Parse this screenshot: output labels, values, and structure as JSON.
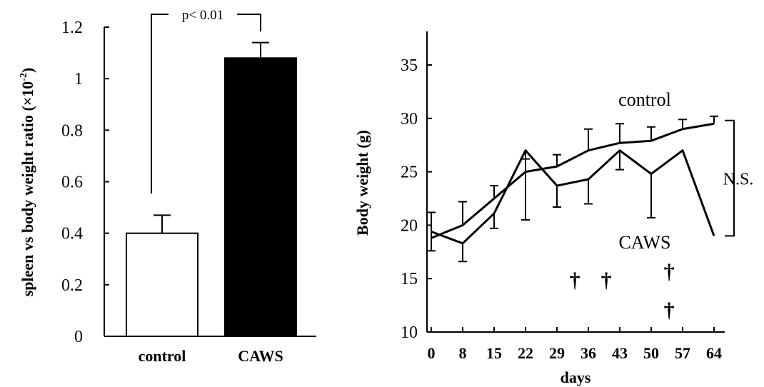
{
  "chart_data": [
    {
      "type": "bar",
      "ylabel": "spleen vs body weight ratio (×10",
      "ylabel_sup": "-2",
      "ylabel_tail": ")",
      "ylim": [
        0,
        1.2
      ],
      "yticks": [
        0,
        0.2,
        0.4,
        0.6,
        0.8,
        1,
        1.2
      ],
      "ytick_labels": [
        "0",
        "0.2",
        "0.4",
        "0.6",
        "0.8",
        "1",
        "1.2"
      ],
      "categories": [
        "control",
        "CAWS"
      ],
      "values": [
        0.4,
        1.08
      ],
      "errors": [
        0.07,
        0.06
      ],
      "bar_colors": [
        "#ffffff",
        "#000000"
      ],
      "annotation": "p< 0.01",
      "grid": false
    },
    {
      "type": "line",
      "xlabel": "days",
      "ylabel": "Body weight (g)",
      "ylim": [
        10,
        38
      ],
      "yticks": [
        10,
        15,
        20,
        25,
        30,
        35
      ],
      "ytick_labels": [
        "10",
        "15",
        "20",
        "25",
        "30",
        "35"
      ],
      "x": [
        1,
        8,
        15,
        22,
        29,
        36,
        43,
        50,
        57,
        64
      ],
      "xtick_labels": [
        "0",
        "8",
        "15",
        "22",
        "29",
        "36",
        "43",
        "50",
        "57",
        "64"
      ],
      "series": [
        {
          "name": "control",
          "values": [
            18.8,
            20.0,
            22.5,
            25.0,
            25.5,
            27.0,
            27.7,
            27.9,
            29.0,
            29.5
          ],
          "errors": [
            2.4,
            2.2,
            1.2,
            1.2,
            1.1,
            2.0,
            1.8,
            1.3,
            0.9,
            0.7
          ],
          "error_direction": "up"
        },
        {
          "name": "CAWS",
          "values": [
            19.4,
            18.3,
            21.1,
            27.0,
            23.7,
            24.3,
            27.0,
            24.8,
            27.0,
            19.0
          ],
          "errors": [
            1.8,
            1.7,
            1.4,
            6.5,
            2.0,
            2.3,
            1.8,
            4.1,
            0.0,
            0.0
          ],
          "error_direction": "down"
        }
      ],
      "death_marker": "†",
      "death_days": [
        33,
        40,
        54,
        54
      ],
      "death_levels": [
        15,
        15,
        15.8,
        12.2
      ],
      "annotation": "N.S.",
      "grid": false
    }
  ]
}
